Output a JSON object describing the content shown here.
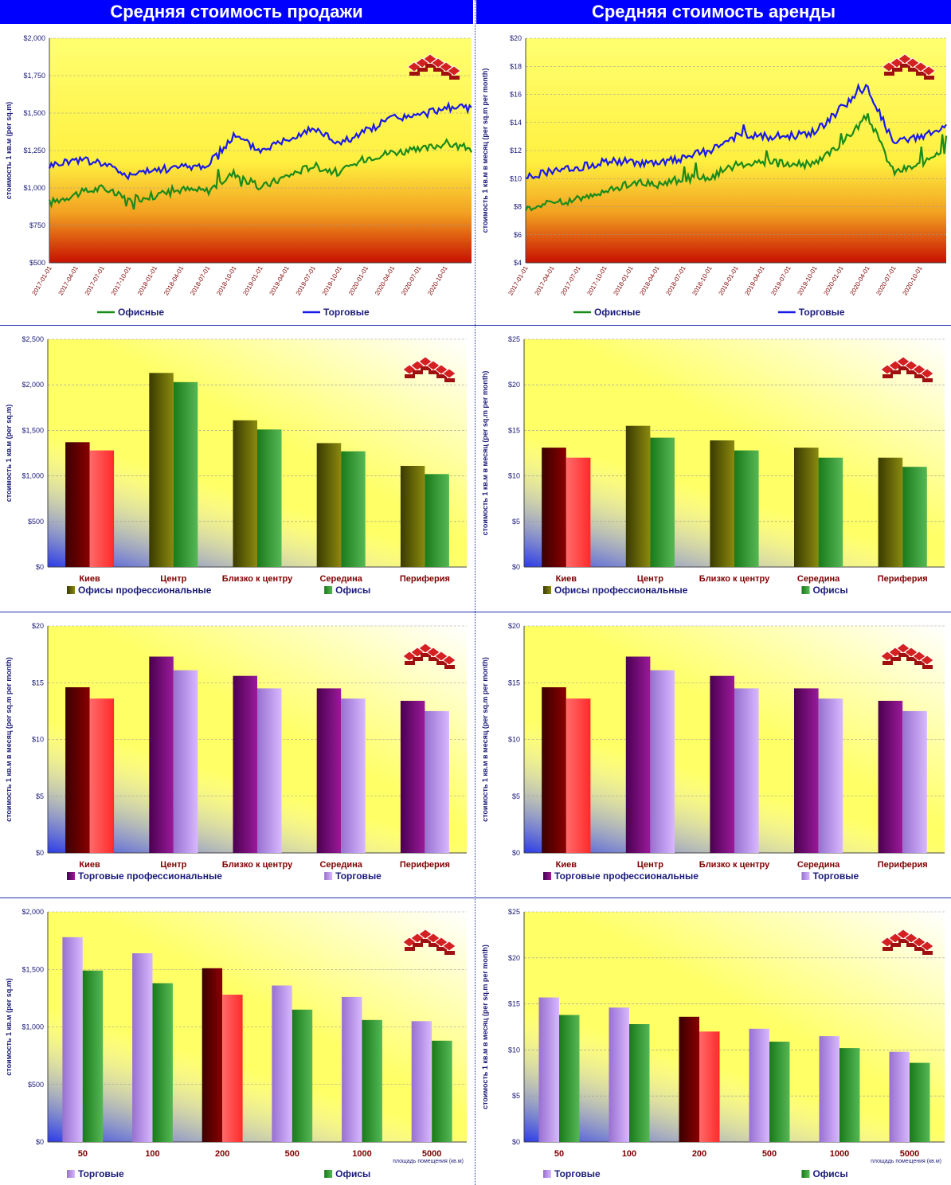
{
  "headers": {
    "left": "Средняя стоимость продажи",
    "right": "Средняя стоимость аренды"
  },
  "colors": {
    "offices_line": "#1a8a1a",
    "retail_line": "#1a1ae6",
    "kiev_dark": "#7a0000",
    "kiev_light": "#ff3d3d",
    "offices_pro": "#6b6b00",
    "offices": "#2a9a2a",
    "retail_pro": "#7a0a7a",
    "retail": "#b48ae6",
    "axis_text": "#1a1a7a",
    "cat_text": "#800000"
  },
  "chart_data": [
    {
      "id": "sale-trend",
      "type": "line",
      "ylabel": "стоимость 1 кв.м (per sq.m)",
      "ylim": [
        500,
        2000
      ],
      "yticks": [
        "$500",
        "$750",
        "$1,000",
        "$1,250",
        "$1,500",
        "$1,750",
        "$2,000"
      ],
      "ytick_values": [
        500,
        750,
        1000,
        1250,
        1500,
        1750,
        2000
      ],
      "x": [
        "2017-01-01",
        "2017-04-01",
        "2017-07-01",
        "2017-10-01",
        "2018-01-01",
        "2018-04-01",
        "2018-07-01",
        "2018-10-01",
        "2019-01-01",
        "2019-04-01",
        "2019-07-01",
        "2019-10-01",
        "2020-01-01",
        "2020-04-01",
        "2020-07-01",
        "2020-10-01",
        "2020-12-01"
      ],
      "xticks": [
        "2017-01-01",
        "2017-04-01",
        "2017-07-01",
        "2017-10-01",
        "2018-01-01",
        "2018-04-01",
        "2018-07-01",
        "2018-10-01",
        "2019-01-01",
        "2019-04-01",
        "2019-07-01",
        "2019-10-01",
        "2020-01-01",
        "2020-04-01",
        "2020-07-01",
        "2020-10-01"
      ],
      "series": [
        {
          "name": "Офисные",
          "color": "#1a8a1a",
          "values": [
            900,
            960,
            1000,
            920,
            950,
            990,
            980,
            1100,
            1000,
            1080,
            1150,
            1100,
            1200,
            1240,
            1250,
            1300,
            1260
          ]
        },
        {
          "name": "Торговые",
          "color": "#1a1ae6",
          "values": [
            1150,
            1190,
            1170,
            1080,
            1120,
            1140,
            1150,
            1350,
            1250,
            1330,
            1400,
            1300,
            1380,
            1470,
            1480,
            1540,
            1530
          ]
        }
      ],
      "legend": [
        "Офисные",
        "Торговые"
      ],
      "legend_placement": "bottom"
    },
    {
      "id": "rent-trend",
      "type": "line",
      "ylabel": "стоимость 1 кв.м в месяц (per sq.m per month)",
      "ylim": [
        4,
        20
      ],
      "yticks": [
        "$4",
        "$6",
        "$8",
        "$10",
        "$12",
        "$14",
        "$16",
        "$18",
        "$20"
      ],
      "ytick_values": [
        4,
        6,
        8,
        10,
        12,
        14,
        16,
        18,
        20
      ],
      "x": [
        "2017-01-01",
        "2017-04-01",
        "2017-07-01",
        "2017-10-01",
        "2018-01-01",
        "2018-04-01",
        "2018-07-01",
        "2018-10-01",
        "2019-01-01",
        "2019-04-01",
        "2019-07-01",
        "2019-10-01",
        "2020-01-01",
        "2020-04-01",
        "2020-07-01",
        "2020-10-01",
        "2020-12-01"
      ],
      "xticks": [
        "2017-01-01",
        "2017-04-01",
        "2017-07-01",
        "2017-10-01",
        "2018-01-01",
        "2018-04-01",
        "2018-07-01",
        "2018-10-01",
        "2019-01-01",
        "2019-04-01",
        "2019-07-01",
        "2019-10-01",
        "2020-01-01",
        "2020-04-01",
        "2020-07-01",
        "2020-10-01"
      ],
      "series": [
        {
          "name": "Офисные",
          "color": "#1a8a1a",
          "values": [
            7.9,
            8.3,
            8.5,
            9.0,
            9.7,
            9.6,
            10.0,
            10.0,
            11.0,
            11.2,
            11.0,
            11.0,
            12.5,
            14.5,
            10.5,
            11.0,
            12.0
          ]
        },
        {
          "name": "Торговые",
          "color": "#1a1ae6",
          "values": [
            10.1,
            10.5,
            10.8,
            11.2,
            11.2,
            11.0,
            11.5,
            12.0,
            13.0,
            13.0,
            13.0,
            13.3,
            15.0,
            16.5,
            12.5,
            13.0,
            13.6
          ]
        }
      ],
      "legend": [
        "Офисные",
        "Торговые"
      ],
      "legend_placement": "bottom"
    },
    {
      "id": "sale-offices-district",
      "type": "bar",
      "ylabel": "стоимость 1 кв.м (per sq.m)",
      "ylim": [
        0,
        2500
      ],
      "yticks": [
        "$0",
        "$500",
        "$1,000",
        "$1,500",
        "$2,000",
        "$2,500"
      ],
      "ytick_values": [
        0,
        500,
        1000,
        1500,
        2000,
        2500
      ],
      "categories": [
        "Киев",
        "Центр",
        "Близко к центру",
        "Середина",
        "Периферия"
      ],
      "series": [
        {
          "name": "Офисы профессиональные",
          "values": [
            1370,
            2130,
            1610,
            1360,
            1110
          ]
        },
        {
          "name": "Офисы",
          "values": [
            1280,
            2030,
            1510,
            1270,
            1020
          ]
        }
      ],
      "legend": [
        "Офисы профессиональные",
        "Офисы"
      ],
      "legend_placement": "bottom"
    },
    {
      "id": "rent-offices-district",
      "type": "bar",
      "ylabel": "стоимость 1 кв.м в месяц (per sq.m per month)",
      "ylim": [
        0,
        25
      ],
      "yticks": [
        "$0",
        "$5",
        "$10",
        "$15",
        "$20",
        "$25"
      ],
      "ytick_values": [
        0,
        5,
        10,
        15,
        20,
        25
      ],
      "categories": [
        "Киев",
        "Центр",
        "Близко к центру",
        "Середина",
        "Периферия"
      ],
      "series": [
        {
          "name": "Офисы профессиональные",
          "values": [
            13.1,
            15.5,
            13.9,
            13.1,
            12.0
          ]
        },
        {
          "name": "Офисы",
          "values": [
            12.0,
            14.2,
            12.8,
            12.0,
            11.0
          ]
        }
      ],
      "legend": [
        "Офисы профессиональные",
        "Офисы"
      ],
      "legend_placement": "bottom"
    },
    {
      "id": "sale-retail-district",
      "type": "bar",
      "ylabel": "стоимость 1 кв.м в месяц (per sq.m per month)",
      "ylim": [
        0,
        20
      ],
      "yticks": [
        "$0",
        "$5",
        "$10",
        "$15",
        "$20"
      ],
      "ytick_values": [
        0,
        5,
        10,
        15,
        20
      ],
      "categories": [
        "Киев",
        "Центр",
        "Близко к центру",
        "Середина",
        "Периферия"
      ],
      "series": [
        {
          "name": "Торговые профессиональные",
          "values": [
            14.6,
            17.3,
            15.6,
            14.5,
            13.4
          ]
        },
        {
          "name": "Торговые",
          "values": [
            13.6,
            16.1,
            14.5,
            13.6,
            12.5
          ]
        }
      ],
      "legend": [
        "Торговые профессиональные",
        "Торговые"
      ],
      "legend_placement": "bottom"
    },
    {
      "id": "rent-retail-district",
      "type": "bar",
      "ylabel": "стоимость 1 кв.м в месяц (per sq.m per month)",
      "ylim": [
        0,
        20
      ],
      "yticks": [
        "$0",
        "$5",
        "$10",
        "$15",
        "$20"
      ],
      "ytick_values": [
        0,
        5,
        10,
        15,
        20
      ],
      "categories": [
        "Киев",
        "Центр",
        "Близко к центру",
        "Середина",
        "Периферия"
      ],
      "series": [
        {
          "name": "Торговые профессиональные",
          "values": [
            14.6,
            17.3,
            15.6,
            14.5,
            13.4
          ]
        },
        {
          "name": "Торговые",
          "values": [
            13.6,
            16.1,
            14.5,
            13.6,
            12.5
          ]
        }
      ],
      "legend": [
        "Торговые профессиональные",
        "Торговые"
      ],
      "legend_placement": "bottom"
    },
    {
      "id": "sale-area",
      "type": "bar",
      "ylabel": "стоимость 1 кв.м (per sq.m)",
      "xlabel": "площадь помещения (кв.м)",
      "ylim": [
        0,
        2000
      ],
      "yticks": [
        "$0",
        "$500",
        "$1,000",
        "$1,500",
        "$2,000"
      ],
      "ytick_values": [
        0,
        500,
        1000,
        1500,
        2000
      ],
      "categories": [
        "50",
        "100",
        "200",
        "500",
        "1000",
        "5000"
      ],
      "series": [
        {
          "name": "Торговые",
          "values": [
            1780,
            1640,
            1510,
            1360,
            1260,
            1050
          ]
        },
        {
          "name": "Офисы",
          "values": [
            1490,
            1380,
            1280,
            1150,
            1060,
            880
          ]
        }
      ],
      "legend": [
        "Торговые",
        "Офисы"
      ],
      "legend_placement": "bottom"
    },
    {
      "id": "rent-area",
      "type": "bar",
      "ylabel": "стоимость 1 кв.м в месяц (per sq.m per month)",
      "xlabel": "площадь помещения (кв.м)",
      "ylim": [
        0,
        25
      ],
      "yticks": [
        "$0",
        "$5",
        "$10",
        "$15",
        "$20",
        "$25"
      ],
      "ytick_values": [
        0,
        5,
        10,
        15,
        20,
        25
      ],
      "categories": [
        "50",
        "100",
        "200",
        "500",
        "1000",
        "5000"
      ],
      "series": [
        {
          "name": "Торговые",
          "values": [
            15.7,
            14.6,
            13.6,
            12.3,
            11.5,
            9.8
          ]
        },
        {
          "name": "Офисы",
          "values": [
            13.8,
            12.8,
            12.0,
            10.9,
            10.2,
            8.6
          ]
        }
      ],
      "legend": [
        "Торговые",
        "Офисы"
      ],
      "legend_placement": "bottom"
    }
  ]
}
